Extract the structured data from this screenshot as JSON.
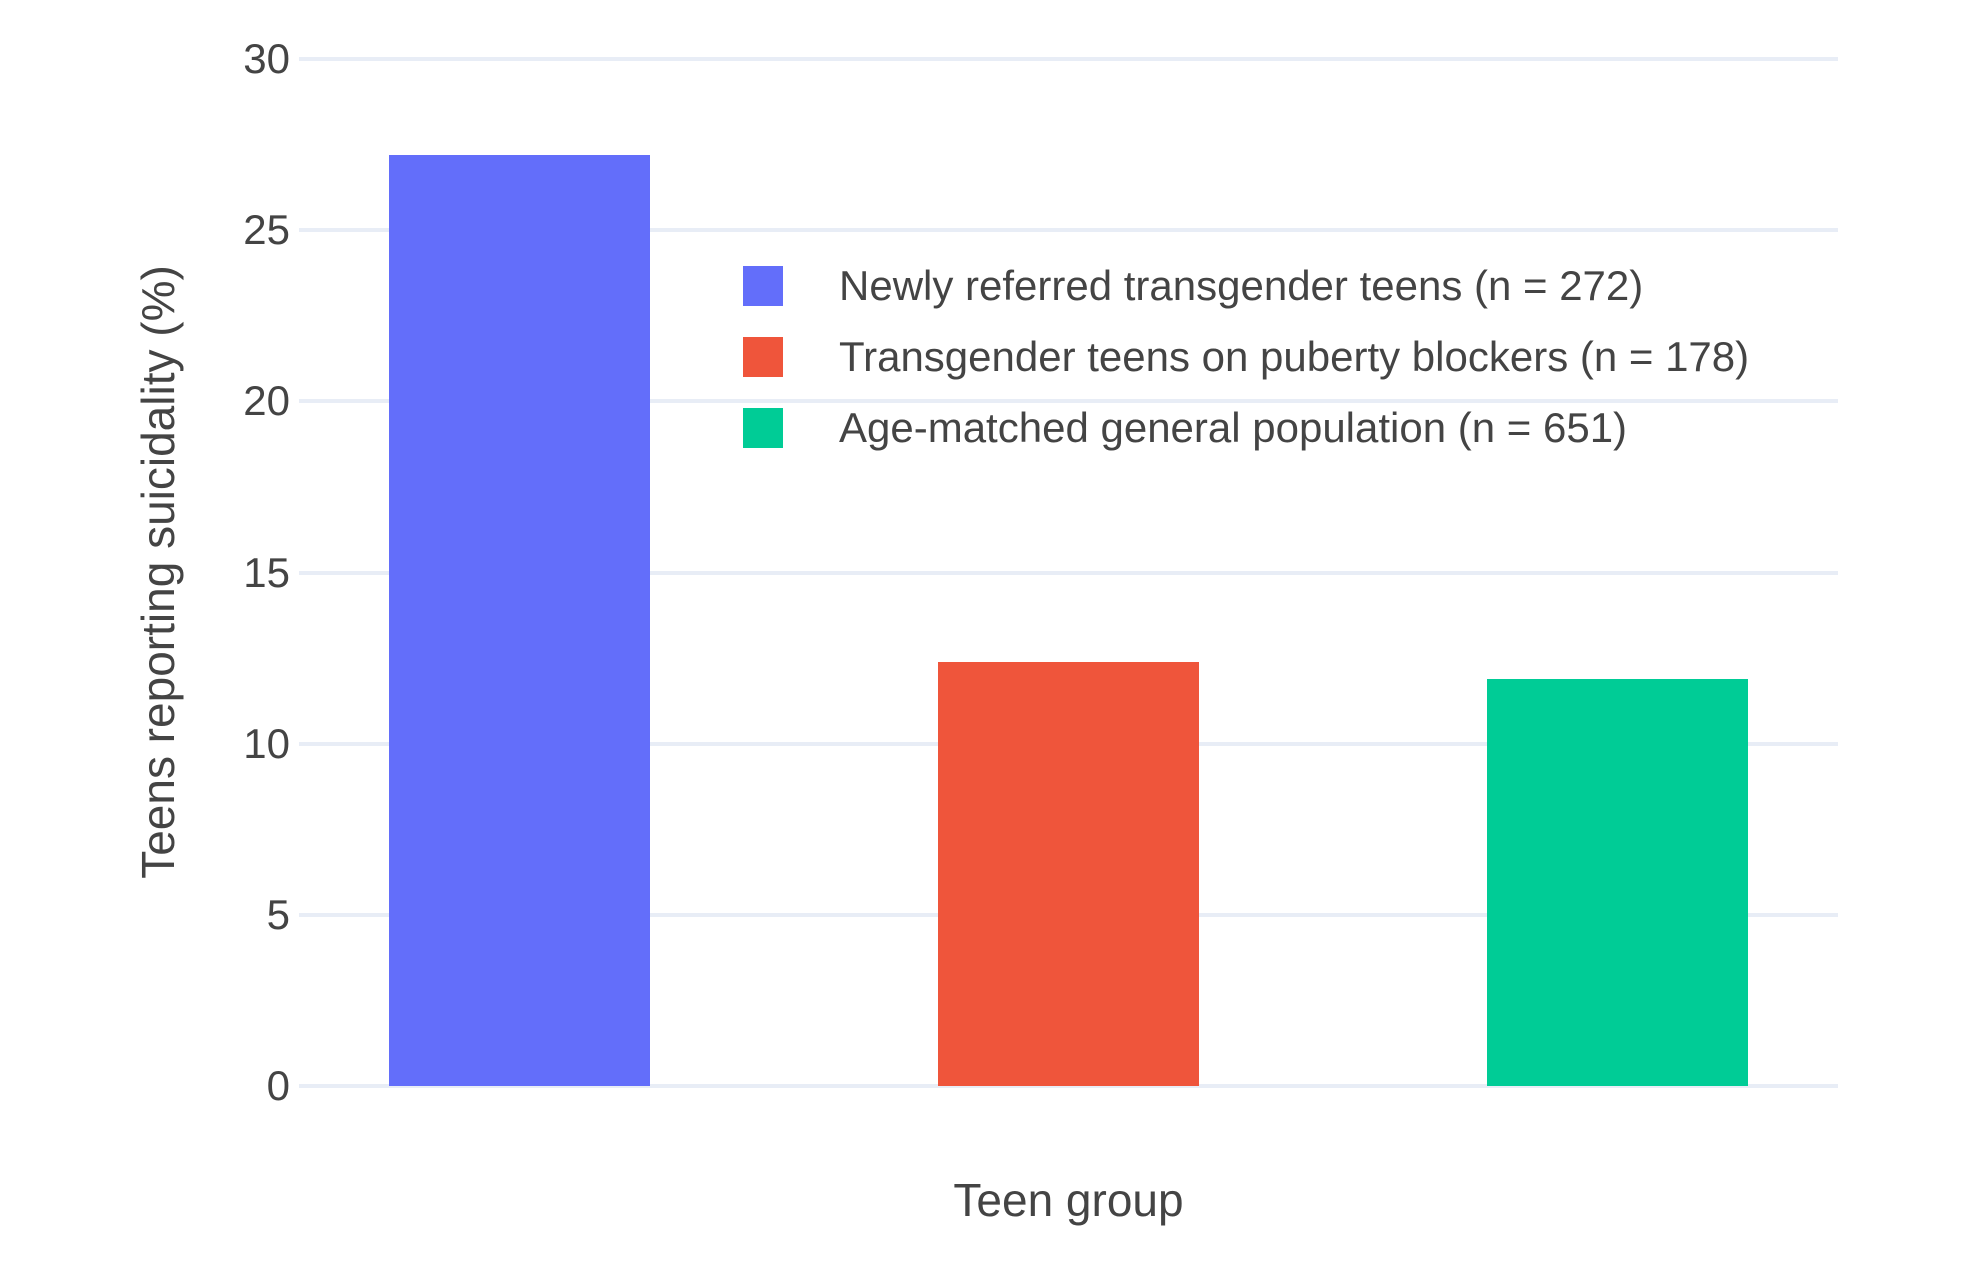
{
  "chart_data": {
    "type": "bar",
    "title": "",
    "xlabel": "Teen group",
    "ylabel": "Teens reporting suicidality (%)",
    "ylim": [
      0,
      30
    ],
    "yticks": [
      0,
      5,
      10,
      15,
      20,
      25,
      30
    ],
    "grid": true,
    "legend_position": "inside upper-left of plot",
    "categories": [
      "Newly referred transgender teens (n = 272)",
      "Transgender teens on puberty blockers (n = 178)",
      "Age-matched general population (n = 651)"
    ],
    "series": [
      {
        "name": "Newly referred transgender teens (n = 272)",
        "value": 27.2,
        "color": "#636EFA"
      },
      {
        "name": "Transgender teens on puberty blockers (n = 178)",
        "value": 12.4,
        "color": "#EF553B"
      },
      {
        "name": "Age-matched general population (n = 651)",
        "value": 11.9,
        "color": "#00CC96"
      }
    ],
    "colors": {
      "background": "#FFFFFF",
      "gridline": "#E8EDF6",
      "text": "#444444"
    }
  }
}
